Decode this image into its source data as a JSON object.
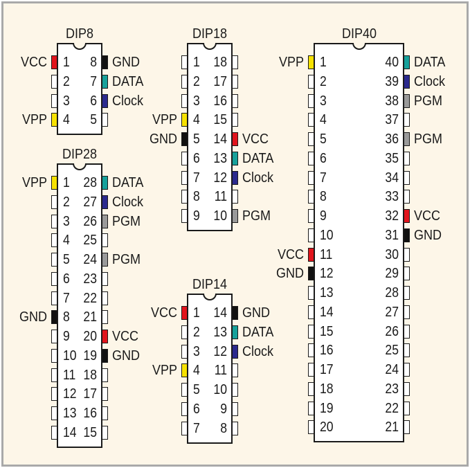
{
  "signal_colors": {
    "VCC": "#e1141c",
    "GND": "#111111",
    "DATA": "#17a19b",
    "Clock": "#2b2a8e",
    "VPP": "#f7e200",
    "PGM": "#9a9a9a"
  },
  "chips": [
    {
      "name": "DIP8",
      "pins": 8,
      "assignments": {
        "1": "VCC",
        "4": "VPP",
        "8": "GND",
        "7": "DATA",
        "6": "Clock"
      }
    },
    {
      "name": "DIP18",
      "pins": 18,
      "assignments": {
        "4": "VPP",
        "5": "GND",
        "14": "VCC",
        "13": "DATA",
        "12": "Clock",
        "10": "PGM"
      }
    },
    {
      "name": "DIP28",
      "pins": 28,
      "assignments": {
        "1": "VPP",
        "8": "GND",
        "28": "DATA",
        "27": "Clock",
        "26": "PGM",
        "24": "PGM",
        "20": "VCC",
        "19": "GND"
      }
    },
    {
      "name": "DIP14",
      "pins": 14,
      "assignments": {
        "1": "VCC",
        "4": "VPP",
        "14": "GND",
        "13": "DATA",
        "12": "Clock"
      }
    },
    {
      "name": "DIP40",
      "pins": 40,
      "assignments": {
        "1": "VPP",
        "11": "VCC",
        "12": "GND",
        "40": "DATA",
        "39": "Clock",
        "38": "PGM",
        "36": "PGM",
        "32": "VCC",
        "31": "GND"
      }
    }
  ]
}
